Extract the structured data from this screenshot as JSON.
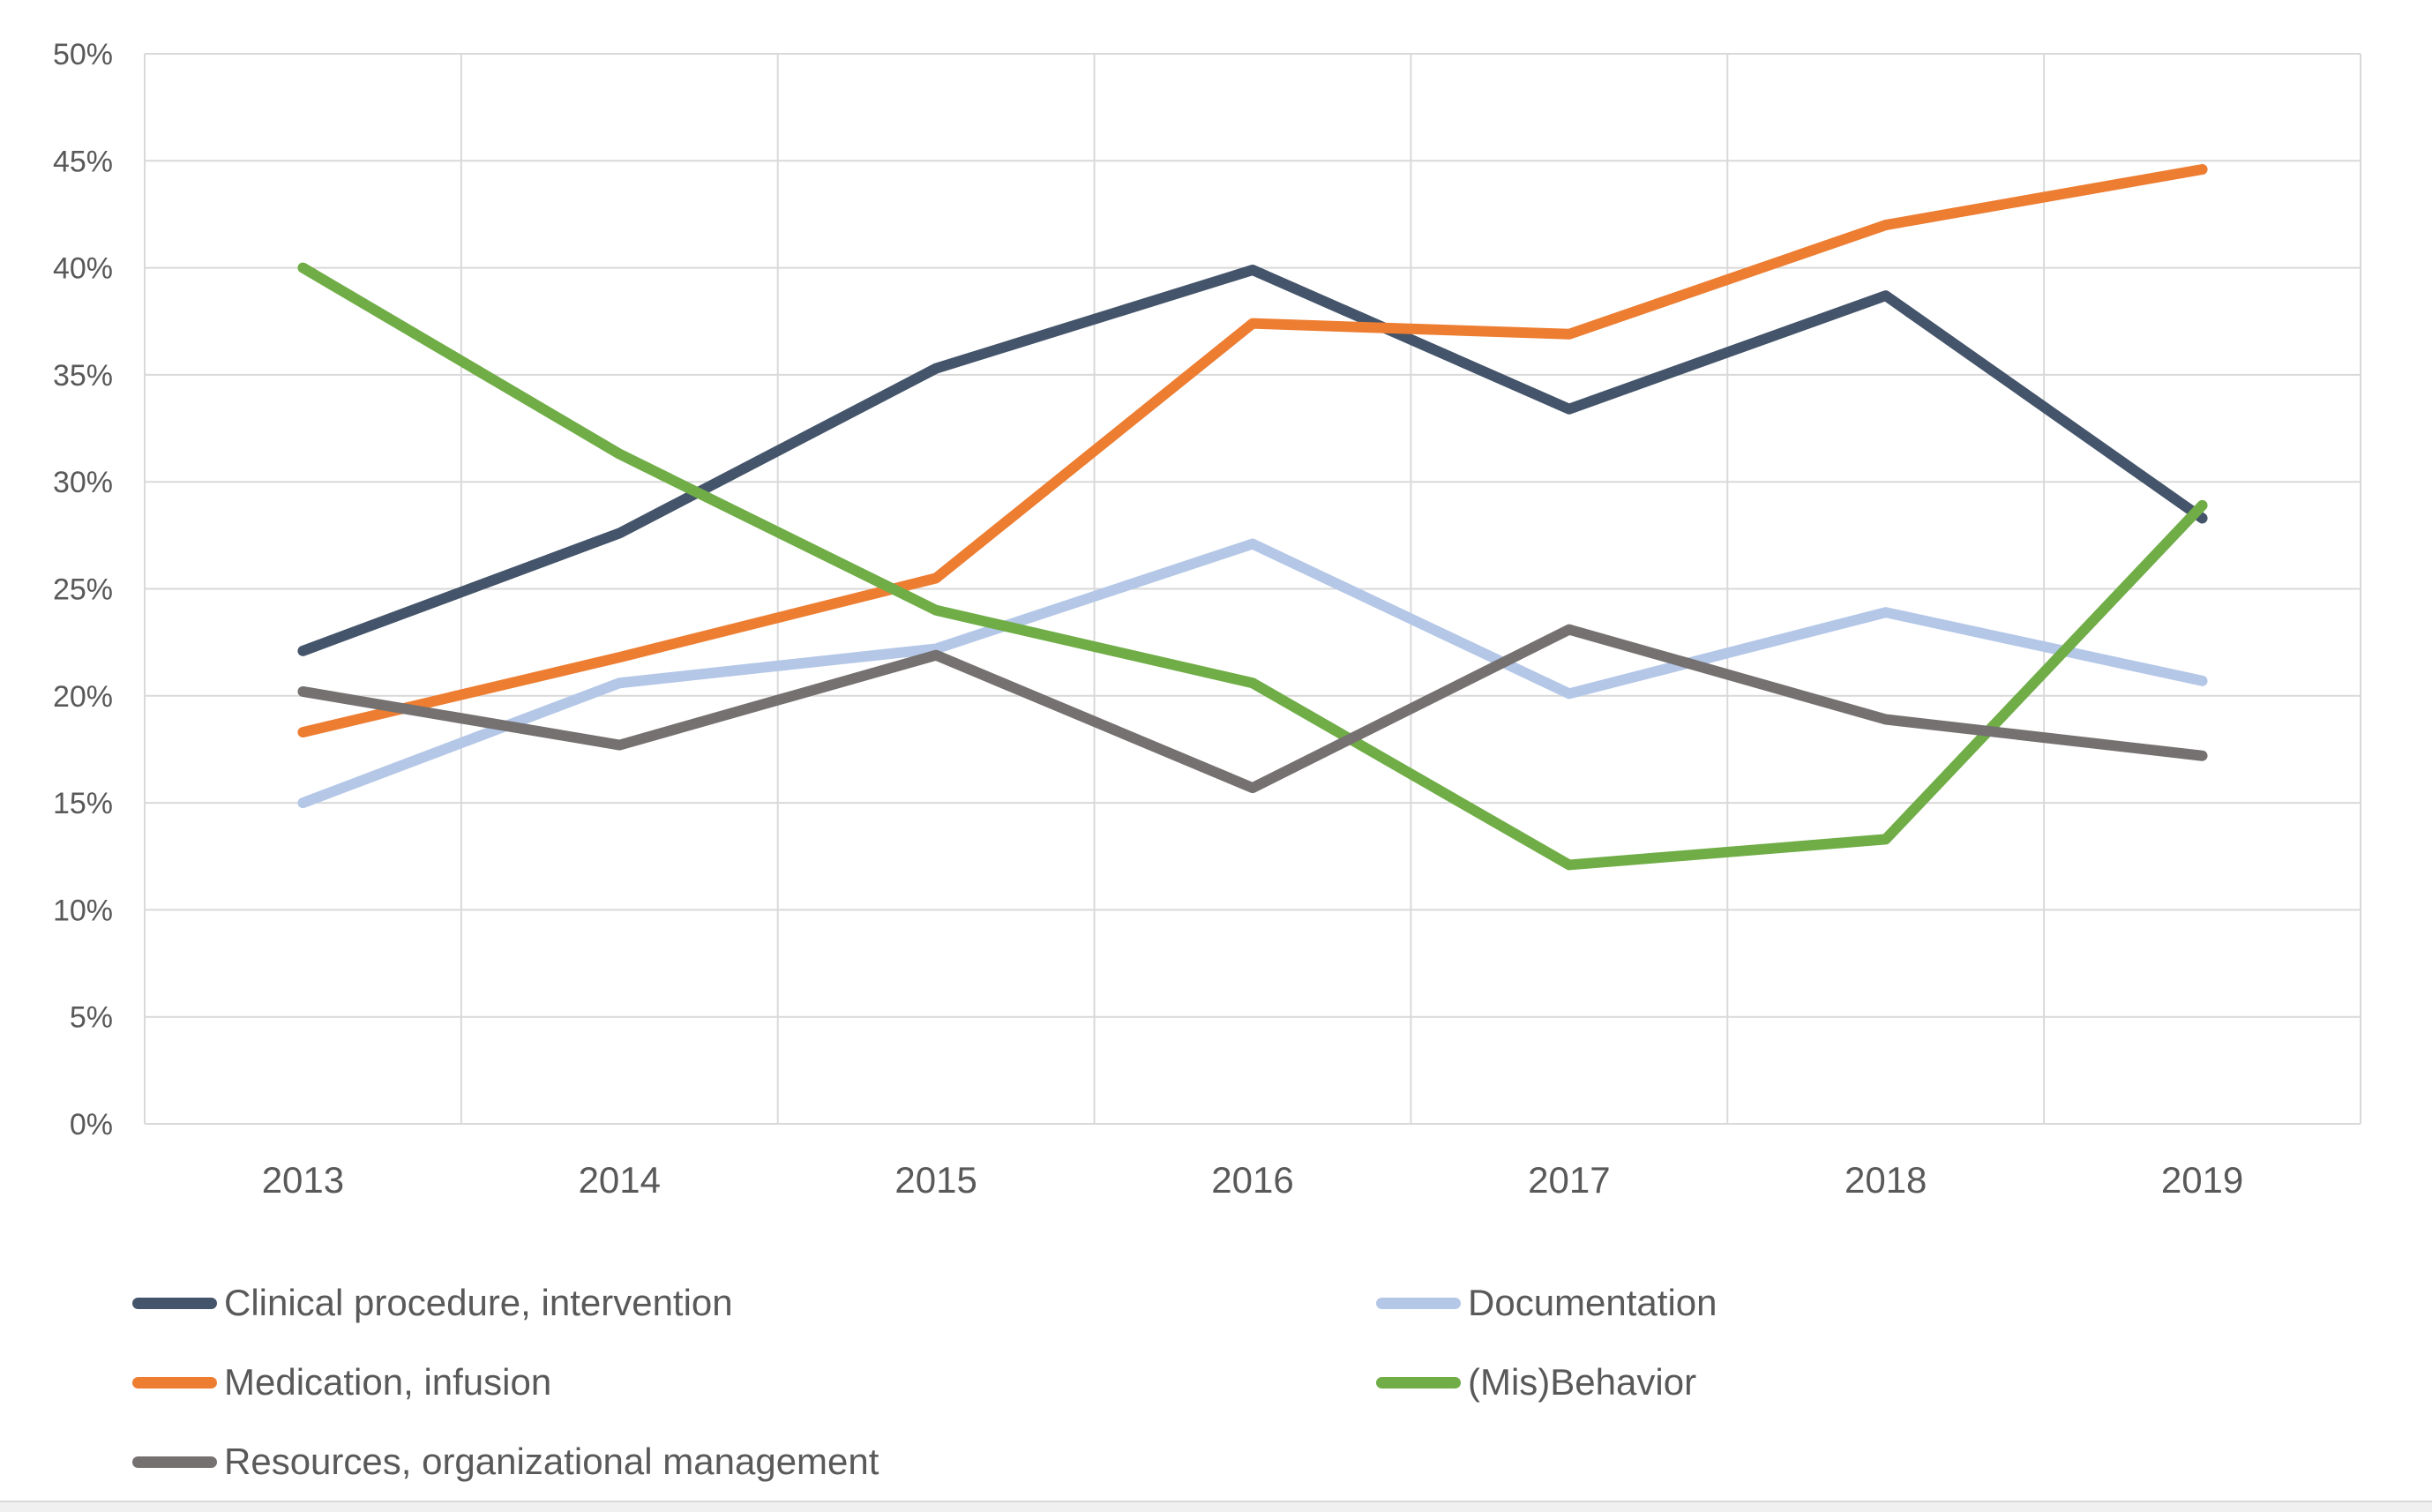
{
  "chart_data": {
    "type": "line",
    "title": "",
    "xlabel": "",
    "ylabel": "",
    "x": [
      "2013",
      "2014",
      "2015",
      "2016",
      "2017",
      "2018",
      "2019"
    ],
    "series": [
      {
        "name": "Clinical procedure, intervention",
        "color": "#44546A",
        "values": [
          22.1,
          27.6,
          35.3,
          39.9,
          33.4,
          38.7,
          28.3
        ]
      },
      {
        "name": "Documentation",
        "color": "#B4C7E7",
        "values": [
          15.0,
          20.6,
          22.2,
          27.1,
          20.1,
          23.9,
          20.7
        ]
      },
      {
        "name": "Medication, infusion",
        "color": "#ED7D31",
        "values": [
          18.3,
          21.8,
          25.5,
          37.4,
          36.9,
          42.0,
          44.6
        ]
      },
      {
        "name": "(Mis)Behavior",
        "color": "#70AD47",
        "values": [
          40.0,
          31.3,
          24.0,
          20.6,
          12.1,
          13.3,
          28.9
        ]
      },
      {
        "name": "Resources, organizational management",
        "color": "#767171",
        "values": [
          20.2,
          17.7,
          21.9,
          15.7,
          23.1,
          18.9,
          17.2
        ]
      }
    ],
    "ylim": [
      0,
      50
    ],
    "ytick_values": [
      0,
      5,
      10,
      15,
      20,
      25,
      30,
      35,
      40,
      45,
      50
    ],
    "ytick_labels": [
      "0%",
      "5%",
      "10%",
      "15%",
      "20%",
      "25%",
      "30%",
      "35%",
      "40%",
      "45%",
      "50%"
    ],
    "grid": true,
    "legend_position": "bottom",
    "legend_columns": [
      [
        0,
        2,
        4
      ],
      [
        1,
        3
      ]
    ]
  },
  "colors": {
    "background": "#FFFFFF",
    "gridline": "#D9D9D9",
    "axis_text": "#595959",
    "legend_text": "#595959",
    "bottom_strip": "#F0F0F0"
  }
}
